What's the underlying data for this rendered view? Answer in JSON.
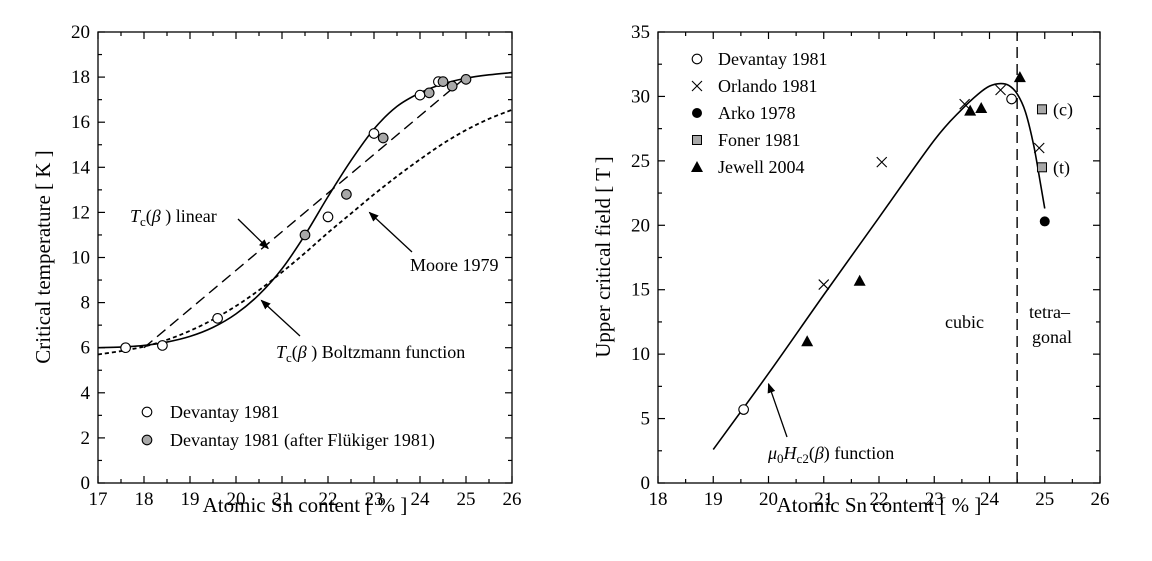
{
  "chart_data": [
    {
      "type": "line",
      "xlabel": "Atomic Sn content [ % ]",
      "ylabel": "Critical temperature [ K ]",
      "xlim": [
        17,
        26
      ],
      "ylim": [
        0,
        20
      ],
      "x_ticks": [
        "17",
        "18",
        "19",
        "20",
        "21",
        "22",
        "23",
        "24",
        "25",
        "26"
      ],
      "y_ticks": [
        "0",
        "2",
        "4",
        "6",
        "8",
        "10",
        "12",
        "14",
        "16",
        "18",
        "20"
      ],
      "grid": false,
      "legend_position": "bottom-left",
      "series": [
        {
          "name": "Devantay 1981",
          "marker": "open-circle",
          "x": [
            17.6,
            18.4,
            19.6,
            22.0,
            23.0,
            24.0,
            24.4
          ],
          "y": [
            6.0,
            6.1,
            7.3,
            11.8,
            15.5,
            17.2,
            17.8
          ]
        },
        {
          "name": "Devantay 1981 (after Flükiger 1981)",
          "marker": "gray-circle",
          "x": [
            21.5,
            22.4,
            23.2,
            24.2,
            24.5,
            24.7,
            25.0
          ],
          "y": [
            11.0,
            12.8,
            15.3,
            17.3,
            17.8,
            17.6,
            17.9
          ]
        }
      ],
      "curves": [
        {
          "style": "solid",
          "x": [
            17.0,
            17.5,
            18.0,
            18.5,
            19.0,
            19.5,
            20.0,
            20.5,
            21.0,
            21.5,
            22.0,
            22.5,
            23.0,
            23.5,
            24.0,
            24.5,
            25.0,
            25.5,
            26.0
          ],
          "y": [
            6.0,
            6.03,
            6.1,
            6.25,
            6.5,
            6.9,
            7.5,
            8.35,
            9.5,
            11.0,
            12.7,
            14.3,
            15.7,
            16.7,
            17.3,
            17.7,
            17.95,
            18.1,
            18.2
          ]
        },
        {
          "style": "dashed",
          "x": [
            18.0,
            25.0
          ],
          "y": [
            6.0,
            18.0
          ]
        },
        {
          "style": "dotted",
          "x": [
            17.0,
            17.5,
            18.0,
            18.5,
            19.0,
            19.5,
            20.0,
            20.5,
            21.0,
            21.5,
            22.0,
            22.5,
            23.0,
            23.5,
            24.0,
            24.5,
            25.0,
            25.5,
            26.0
          ],
          "y": [
            5.7,
            5.85,
            6.05,
            6.35,
            6.75,
            7.25,
            7.85,
            8.55,
            9.35,
            10.2,
            11.1,
            11.95,
            12.8,
            13.6,
            14.35,
            15.05,
            15.65,
            16.15,
            16.55
          ]
        }
      ],
      "annotations": {
        "tc_linear": {
          "tc": "T",
          "sub": "c",
          "paren_open": "(",
          "beta": "β",
          "paren_close": " ) linear",
          "arrow_to": [
            20.7,
            10.4
          ]
        },
        "moore": {
          "text": "Moore 1979",
          "arrow_to": [
            22.9,
            12.0
          ]
        },
        "tc_boltzmann": {
          "tc": "T",
          "sub": "c",
          "paren_open": "(",
          "beta": "β",
          "paren_close": " ) Boltzmann function",
          "arrow_to": [
            20.55,
            8.1
          ]
        }
      }
    },
    {
      "type": "line",
      "xlabel": "Atomic Sn content [ % ]",
      "ylabel": "Upper critical field [ T ]",
      "xlim": [
        18,
        26
      ],
      "ylim": [
        0,
        35
      ],
      "x_ticks": [
        "18",
        "19",
        "20",
        "21",
        "22",
        "23",
        "24",
        "25",
        "26"
      ],
      "y_ticks": [
        "0",
        "5",
        "10",
        "15",
        "20",
        "25",
        "30",
        "35"
      ],
      "grid": false,
      "legend_position": "top-left",
      "series": [
        {
          "name": "Devantay 1981",
          "marker": "open-circle",
          "x": [
            19.55,
            24.4
          ],
          "y": [
            5.7,
            29.8
          ]
        },
        {
          "name": "Orlando 1981",
          "marker": "cross",
          "x": [
            21.0,
            22.05,
            23.55,
            24.2,
            24.9
          ],
          "y": [
            15.4,
            24.9,
            29.4,
            30.5,
            26.0
          ]
        },
        {
          "name": "Arko 1978",
          "marker": "filled-circle",
          "x": [
            25.0
          ],
          "y": [
            20.3
          ]
        },
        {
          "name": "Foner 1981",
          "marker": "gray-square",
          "x": [
            24.95,
            24.95
          ],
          "y": [
            29.0,
            24.5
          ]
        },
        {
          "name": "Jewell 2004",
          "marker": "filled-triangle",
          "x": [
            20.7,
            21.65,
            23.65,
            23.85,
            24.55
          ],
          "y": [
            11.0,
            15.7,
            28.9,
            29.1,
            31.5
          ]
        }
      ],
      "curves": [
        {
          "style": "solid",
          "x": [
            19.0,
            20.0,
            21.0,
            22.0,
            23.0,
            23.5,
            23.8,
            24.0,
            24.2,
            24.35,
            24.5,
            24.65,
            24.8,
            24.92,
            25.0
          ],
          "y": [
            2.6,
            8.5,
            14.6,
            20.6,
            26.6,
            29.0,
            30.2,
            30.8,
            31.0,
            30.85,
            30.2,
            28.8,
            26.2,
            23.3,
            21.3
          ]
        },
        {
          "style": "dashed",
          "x": [
            24.5,
            24.5
          ],
          "y": [
            0,
            35
          ]
        }
      ],
      "point_labels": [
        {
          "text": "(c)",
          "x": 25.15,
          "y": 29.0
        },
        {
          "text": "(t)",
          "x": 25.15,
          "y": 24.5
        }
      ],
      "annotations": {
        "cubic": "cubic",
        "tetragonal_1": "tetra–",
        "tetragonal_2": "gonal",
        "hc2": {
          "mu": "μ",
          "mu_sub": "0",
          "h": "H",
          "h_sub": "c2",
          "paren_open": "(",
          "beta": "β",
          "paren_close": ") function",
          "arrow_to": [
            20.0,
            7.7
          ]
        }
      }
    }
  ]
}
